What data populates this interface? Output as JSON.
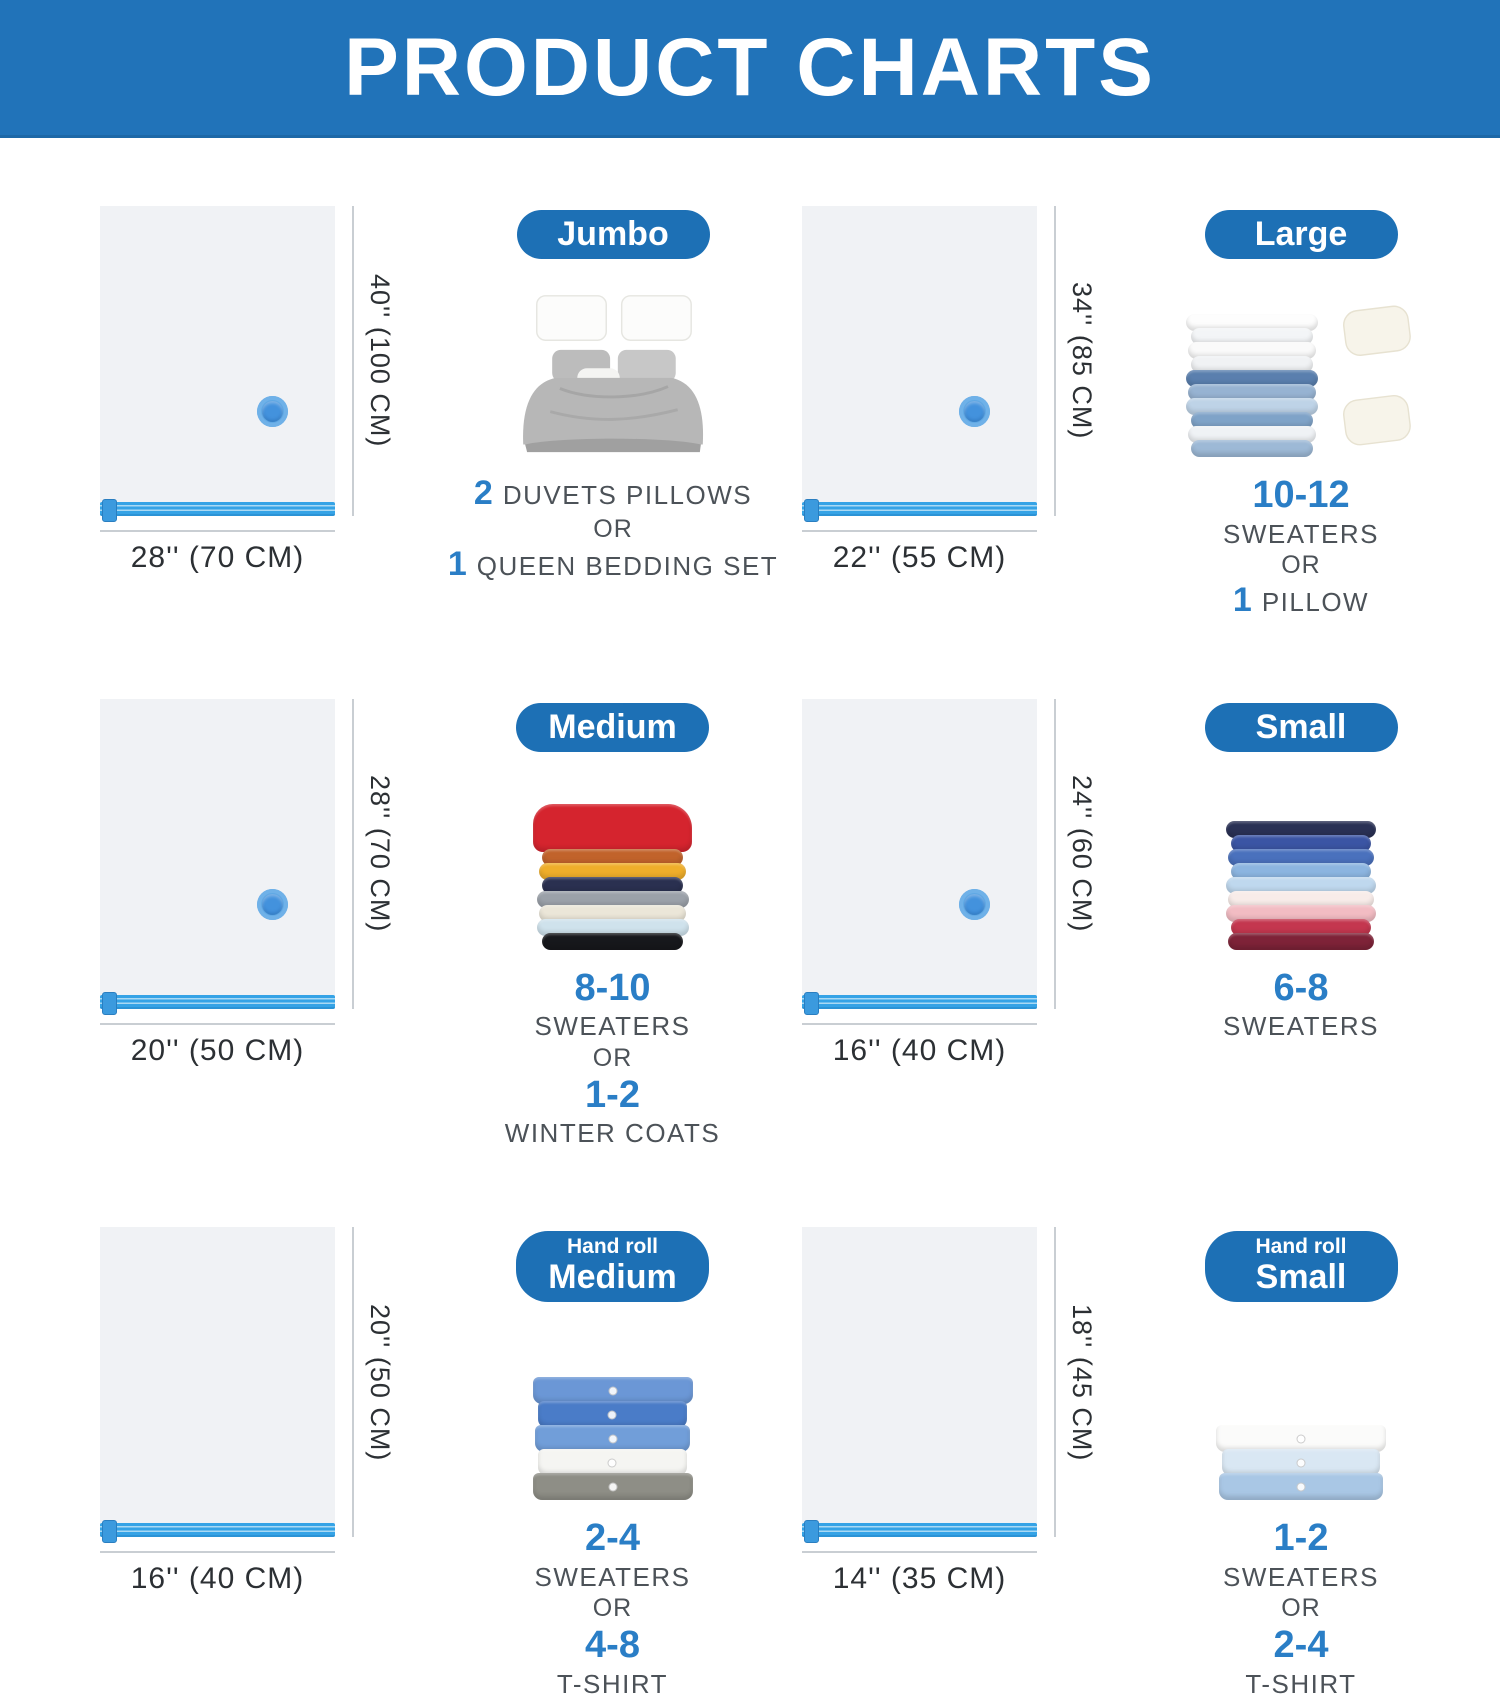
{
  "header": {
    "title": "PRODUCT CHARTS"
  },
  "colors": {
    "banner_blue": "#2173b9",
    "badge_blue": "#1d70b5",
    "accent_number_blue": "#2a7ec6",
    "zipper_blue": "#35a3e6",
    "valve_blue": "#4392dd",
    "bag_fill": "#f0f2f5",
    "dimension_line_gray": "#c9ced3",
    "dimension_text": "#2c3034",
    "label_gray": "#4c5258"
  },
  "sections": [
    {
      "size_name": "Jumbo",
      "badge_line1": "",
      "badge_line2": "Jumbo",
      "bag_height_label": "40'' (100 CM)",
      "bag_width_label": "28'' (70 CM)",
      "has_valve": true,
      "art": {
        "type": "bed",
        "alt": "queen-bed-with-gray-duvet-and-two-white-pillows"
      },
      "capacity_lines": [
        {
          "num": "2",
          "label": "DUVETS PILLOWS"
        },
        {
          "num": "",
          "label": "OR"
        },
        {
          "num": "1",
          "label": "QUEEN BEDDING SET"
        }
      ]
    },
    {
      "size_name": "Large",
      "badge_line1": "",
      "badge_line2": "Large",
      "bag_height_label": "34'' (85 CM)",
      "bag_width_label": "22'' (55 CM)",
      "has_valve": true,
      "art": {
        "type": "stack-pillows",
        "alt": "stack-of-white-and-blue-sweaters-with-two-pillows",
        "stack_width": 132,
        "colors": [
          "#fdfdfd",
          "#f3f5f7",
          "#fafafa",
          "#f0f2f4",
          "#5a7fae",
          "#97b3d2",
          "#bed3e7",
          "#7fa3c8",
          "#eff2f5",
          "#9db9d6"
        ]
      },
      "capacity_lines": [
        {
          "num": "10-12",
          "label": ""
        },
        {
          "num": "",
          "label": "SWEATERS"
        },
        {
          "num": "",
          "label": "OR"
        },
        {
          "num": "1",
          "label": "PILLOW"
        }
      ]
    },
    {
      "size_name": "Medium",
      "badge_line1": "",
      "badge_line2": "Medium",
      "bag_height_label": "28'' (70 CM)",
      "bag_width_label": "20'' (50 CM)",
      "has_valve": true,
      "art": {
        "type": "stack",
        "alt": "stack-of-colorful-folded-sweaters",
        "stack_width": 152,
        "top_draped": true,
        "colors": [
          "#d5242e",
          "#c1632b",
          "#efae2a",
          "#2a3050",
          "#9ba1a9",
          "#ebe6d8",
          "#cfe2ec",
          "#17181c"
        ]
      },
      "capacity_lines": [
        {
          "num": "8-10",
          "label": ""
        },
        {
          "num": "",
          "label": "SWEATERS"
        },
        {
          "num": "",
          "label": "OR"
        },
        {
          "num": "1-2",
          "label": ""
        },
        {
          "num": "",
          "label": "WINTER COATS"
        }
      ]
    },
    {
      "size_name": "Small",
      "badge_line1": "",
      "badge_line2": "Small",
      "bag_height_label": "24'' (60 CM)",
      "bag_width_label": "16'' (40 CM)",
      "has_valve": true,
      "art": {
        "type": "stack",
        "alt": "stack-of-navy-blue-pink-and-red-folded-sweaters",
        "stack_width": 150,
        "colors": [
          "#2a3155",
          "#3b55a4",
          "#4a71bd",
          "#8cb5e0",
          "#bfd8ee",
          "#f8ece9",
          "#f2bcc3",
          "#c4374f",
          "#7e2338"
        ]
      },
      "capacity_lines": [
        {
          "num": "6-8",
          "label": ""
        },
        {
          "num": "",
          "label": "SWEATERS"
        }
      ]
    },
    {
      "size_name": "Hand roll Medium",
      "badge_line1": "Hand roll",
      "badge_line2": "Medium",
      "bag_height_label": "20'' (50 CM)",
      "bag_width_label": "16'' (40 CM)",
      "has_valve": false,
      "art": {
        "type": "shirts",
        "alt": "stack-of-folded-button-up-shirts",
        "stack_width": 160,
        "colors": [
          "#6b97d6",
          "#4a7cc8",
          "#719ed9",
          "#f5f5f2",
          "#8e8e86"
        ]
      },
      "capacity_lines": [
        {
          "num": "2-4",
          "label": ""
        },
        {
          "num": "",
          "label": "SWEATERS"
        },
        {
          "num": "",
          "label": "OR"
        },
        {
          "num": "4-8",
          "label": ""
        },
        {
          "num": "",
          "label": "T-SHIRT"
        }
      ]
    },
    {
      "size_name": "Hand roll Small",
      "badge_line1": "Hand roll",
      "badge_line2": "Small",
      "bag_height_label": "18'' (45 CM)",
      "bag_width_label": "14'' (35 CM)",
      "has_valve": false,
      "art": {
        "type": "shirts",
        "alt": "small-stack-of-folded-white-and-blue-shirts",
        "stack_width": 170,
        "colors": [
          "#fbfbfa",
          "#d9e7f3",
          "#a9c7e5"
        ]
      },
      "capacity_lines": [
        {
          "num": "1-2",
          "label": ""
        },
        {
          "num": "",
          "label": "SWEATERS"
        },
        {
          "num": "",
          "label": "OR"
        },
        {
          "num": "2-4",
          "label": ""
        },
        {
          "num": "",
          "label": "T-SHIRT"
        }
      ]
    }
  ]
}
